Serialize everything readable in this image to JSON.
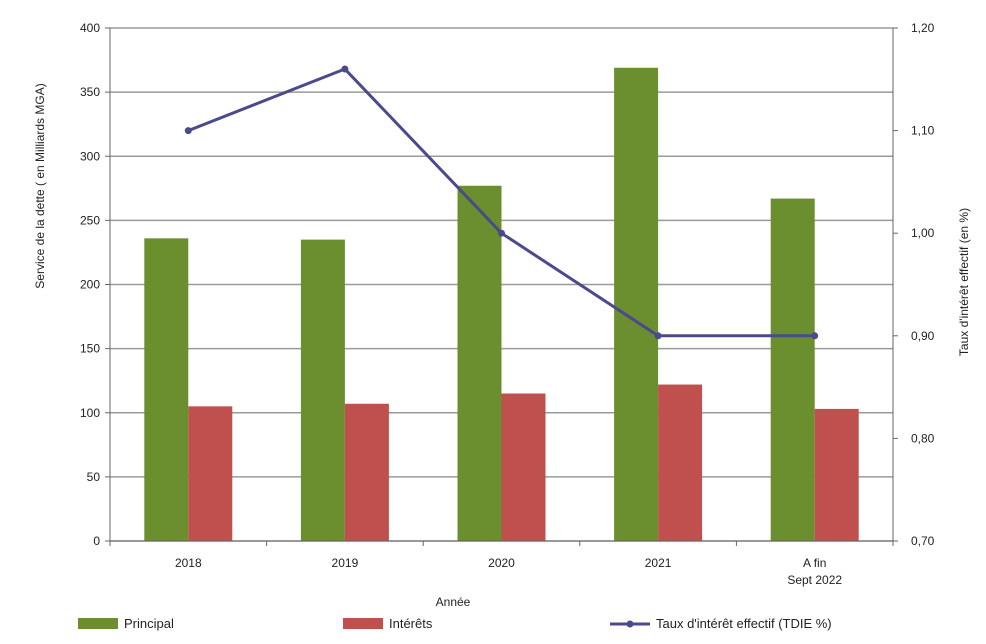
{
  "chart_data": {
    "type": "bar",
    "categories": [
      "2018",
      "2019",
      "2020",
      "2021",
      "A fin\nSept 2022"
    ],
    "series": [
      {
        "name": "Principal",
        "axis": "left",
        "kind": "bar",
        "color": "#6b8e2e",
        "values": [
          236,
          235,
          277,
          369,
          267
        ]
      },
      {
        "name": "Intérêts",
        "axis": "left",
        "kind": "bar",
        "color": "#c0504d",
        "values": [
          105,
          107,
          115,
          122,
          103
        ]
      },
      {
        "name": "Taux d'intérêt effectif (TDIE %)",
        "axis": "right",
        "kind": "line",
        "color": "#4a4a8c",
        "values": [
          1.1,
          1.16,
          1.0,
          0.9,
          0.9
        ]
      }
    ],
    "xlabel": "Année",
    "ylabel": "Service de la dette ( en Milliards MGA)",
    "y2label": "Taux d'intérêt effectif (en %)",
    "ylim": [
      0,
      400
    ],
    "yticks": [
      "0",
      "50",
      "100",
      "150",
      "200",
      "250",
      "300",
      "350",
      "400"
    ],
    "y2lim": [
      0.7,
      1.2
    ],
    "y2ticks": [
      "0,70",
      "0,80",
      "0,90",
      "1,00",
      "1,10",
      "1,20"
    ],
    "grid": true,
    "legend_position": "bottom"
  }
}
